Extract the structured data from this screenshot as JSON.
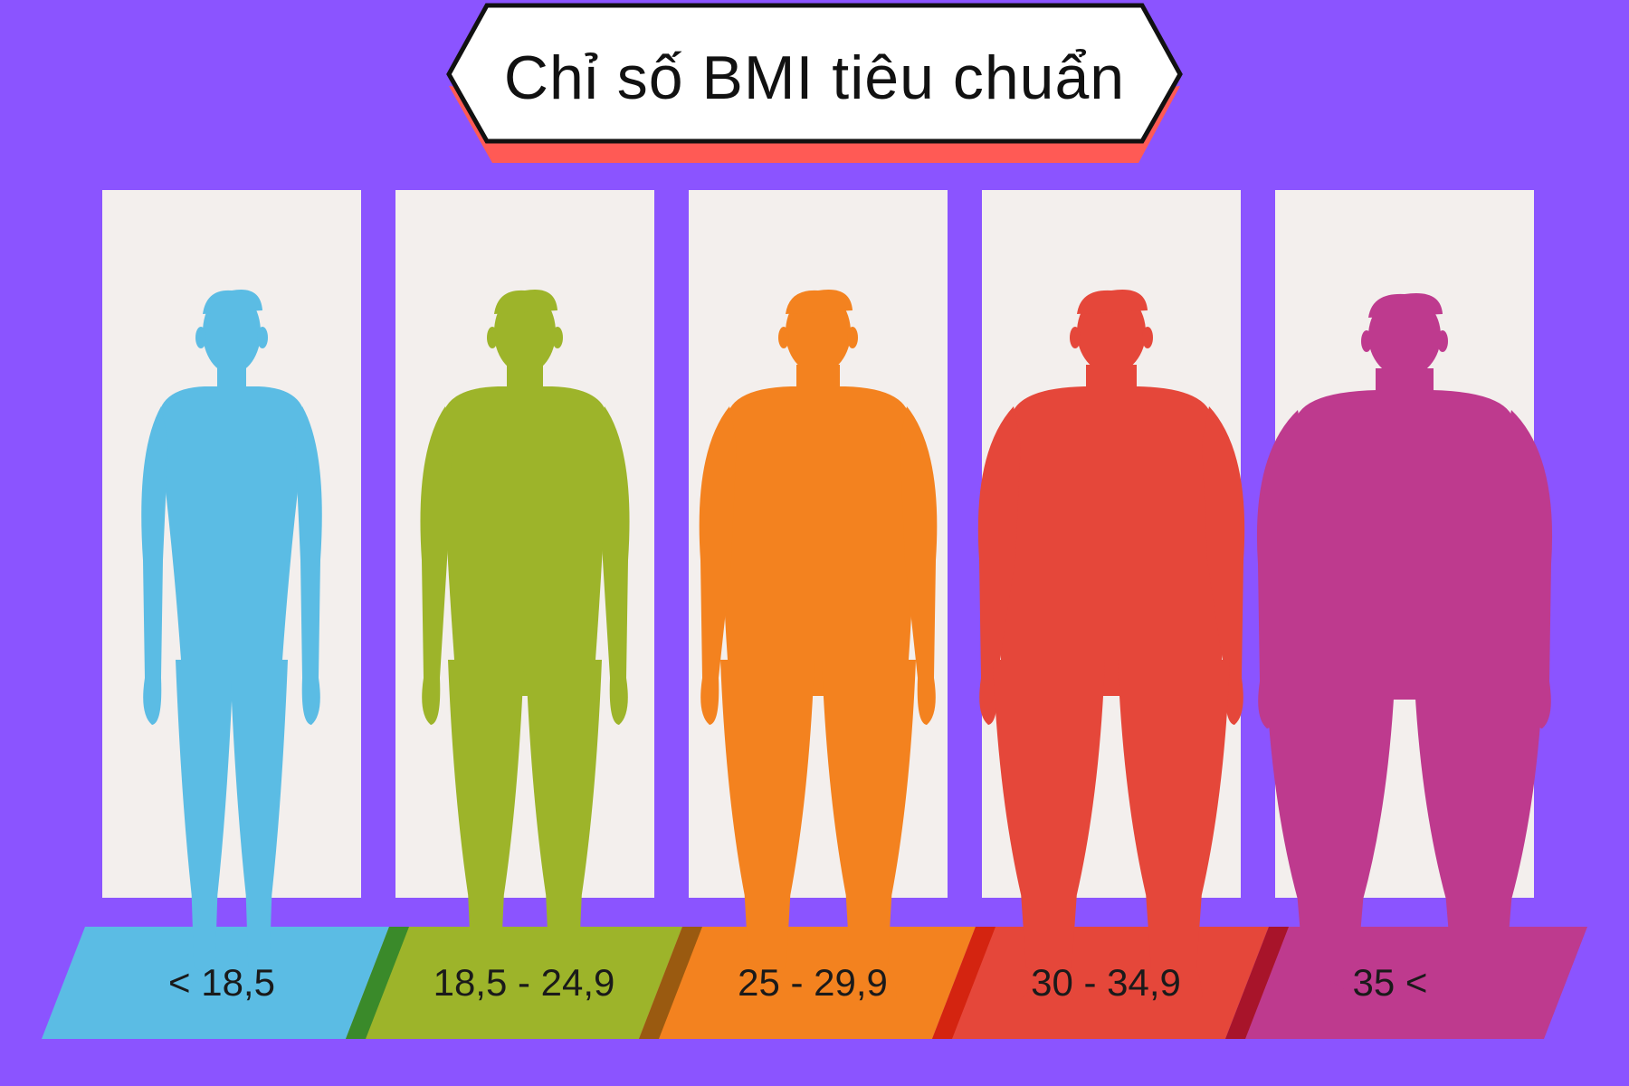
{
  "title": "Chỉ số BMI tiêu chuẩn",
  "colors": {
    "background": "#8b54ff",
    "panel": "#f3efed",
    "title_shadow": "#ff5a55"
  },
  "categories": [
    {
      "range": "< 18,5",
      "color": "#5bbce4",
      "accent": "#5bbce4",
      "build": 0
    },
    {
      "range": "18,5 - 24,9",
      "color": "#9db42a",
      "accent": "#3a8a2a",
      "build": 1
    },
    {
      "range": "25 - 29,9",
      "color": "#f3821f",
      "accent": "#9a5a10",
      "build": 2
    },
    {
      "range": "30 - 34,9",
      "color": "#e5473a",
      "accent": "#d42410",
      "build": 3
    },
    {
      "range": "35 <",
      "color": "#be3a8e",
      "accent": "#a8142a",
      "build": 4
    }
  ]
}
